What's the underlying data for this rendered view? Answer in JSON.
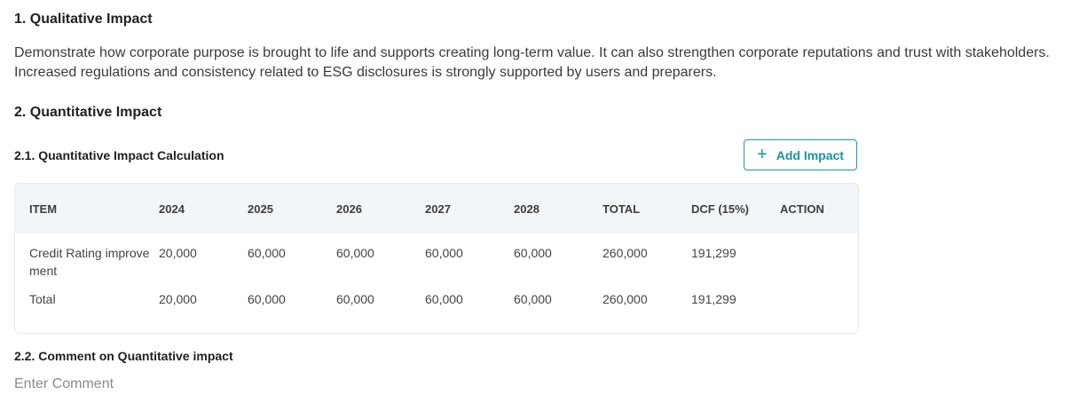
{
  "qualitative": {
    "heading": "1. Qualitative Impact",
    "text": "Demonstrate how corporate purpose is brought to life and supports creating long-term value. It can also strengthen corporate reputations and trust with stakeholders. Increased regulations and consistency related to ESG disclosures is strongly supported by users and preparers."
  },
  "quantitative": {
    "heading": "2. Quantitative Impact",
    "calc_heading": "2.1. Quantitative Impact Calculation",
    "add_button_label": "Add Impact",
    "table": {
      "headers": [
        "ITEM",
        "2024",
        "2025",
        "2026",
        "2027",
        "2028",
        "TOTAL",
        "DCF (15%)",
        "ACTION"
      ],
      "rows": [
        [
          "Credit Rating improvement",
          "20,000",
          "60,000",
          "60,000",
          "60,000",
          "60,000",
          "260,000",
          "191,299",
          ""
        ],
        [
          "Total",
          "20,000",
          "60,000",
          "60,000",
          "60,000",
          "60,000",
          "260,000",
          "191,299",
          ""
        ]
      ]
    },
    "comment_heading": "2.2. Comment on Quantitative impact",
    "comment_placeholder": "Enter Comment"
  }
}
